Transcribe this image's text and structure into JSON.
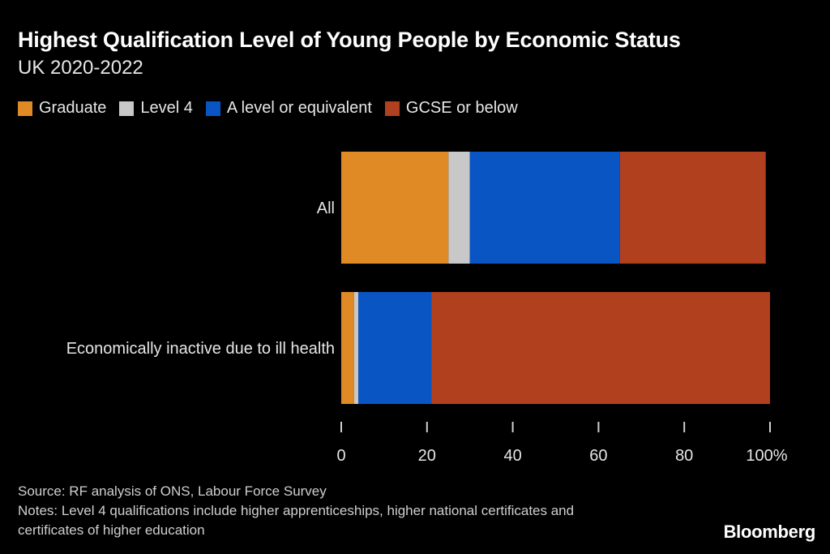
{
  "chart_data": {
    "type": "bar",
    "orientation": "horizontal",
    "stacked": true,
    "title": "Highest Qualification Level of Young People by Economic Status",
    "subtitle": "UK 2020-2022",
    "categories": [
      "All",
      "Economically inactive due to ill health"
    ],
    "series": [
      {
        "name": "Graduate",
        "color": "#e08a25",
        "values": [
          25,
          3
        ]
      },
      {
        "name": "Level 4",
        "color": "#c8c8c8",
        "values": [
          5,
          1
        ]
      },
      {
        "name": "A level or equivalent",
        "color": "#0a55c4",
        "values": [
          35,
          17
        ]
      },
      {
        "name": "GCSE or below",
        "color": "#b0401e",
        "values": [
          34,
          79
        ]
      }
    ],
    "xlim": [
      0,
      100
    ],
    "xticks": [
      "0",
      "20",
      "40",
      "60",
      "80",
      "100%"
    ],
    "xlabel": "",
    "ylabel": "",
    "legend_position": "top"
  },
  "footer": {
    "source": "Source: RF analysis of ONS, Labour Force Survey",
    "notes": "Notes: Level 4 qualifications include higher apprenticeships, higher national certificates and certificates of higher education",
    "brand": "Bloomberg"
  }
}
